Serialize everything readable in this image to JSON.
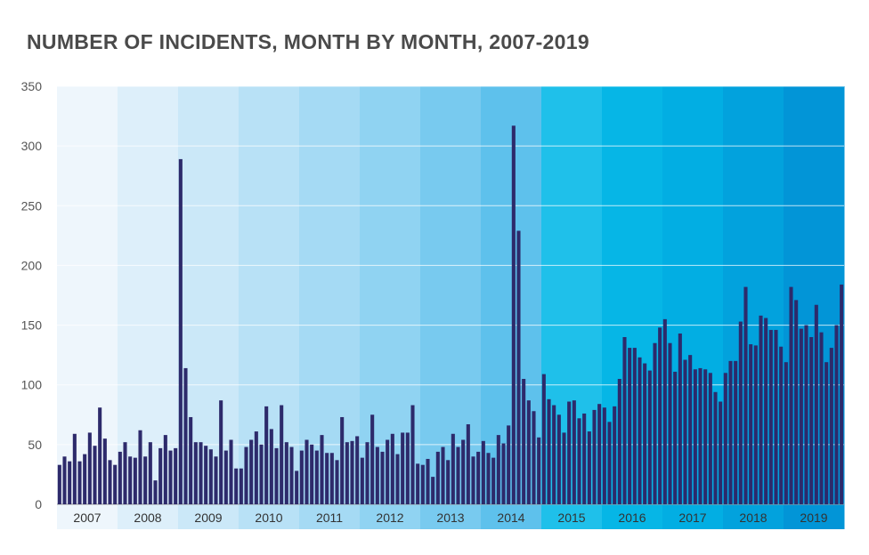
{
  "chart_data": {
    "type": "bar",
    "title": "NUMBER OF INCIDENTS, MONTH BY MONTH, 2007-2019",
    "xlabel": "",
    "ylabel": "",
    "ylim": [
      0,
      350
    ],
    "y_ticks": [
      0,
      50,
      100,
      150,
      200,
      250,
      300,
      350
    ],
    "grid": true,
    "bar_color": "#2d2a6b",
    "years": [
      "2007",
      "2008",
      "2009",
      "2010",
      "2011",
      "2012",
      "2013",
      "2014",
      "2015",
      "2016",
      "2017",
      "2018",
      "2019"
    ],
    "year_band_colors": [
      "#eef6fc",
      "#ddeffa",
      "#cbe8f8",
      "#b8e1f6",
      "#a5daf4",
      "#90d3f2",
      "#78caef",
      "#5ec1ec",
      "#1fc0ea",
      "#06b6e6",
      "#02aee3",
      "#02a2dd",
      "#0295d7"
    ],
    "values": [
      33,
      40,
      36,
      59,
      36,
      42,
      60,
      49,
      81,
      55,
      37,
      33,
      44,
      52,
      40,
      39,
      62,
      40,
      52,
      20,
      47,
      58,
      45,
      47,
      289,
      114,
      73,
      52,
      52,
      49,
      46,
      40,
      87,
      45,
      54,
      30,
      30,
      48,
      54,
      61,
      50,
      82,
      63,
      47,
      83,
      52,
      48,
      28,
      45,
      54,
      50,
      45,
      58,
      43,
      43,
      37,
      73,
      52,
      53,
      57,
      39,
      52,
      75,
      48,
      44,
      54,
      59,
      42,
      60,
      60,
      83,
      34,
      33,
      38,
      23,
      44,
      48,
      37,
      59,
      48,
      54,
      67,
      40,
      44,
      53,
      43,
      39,
      58,
      51,
      66,
      317,
      229,
      105,
      87,
      78,
      56,
      109,
      88,
      83,
      75,
      60,
      86,
      87,
      72,
      76,
      61,
      79,
      84,
      81,
      69,
      82,
      105,
      140,
      131,
      131,
      123,
      118,
      112,
      135,
      148,
      155,
      135,
      111,
      143,
      121,
      125,
      113,
      114,
      113,
      110,
      94,
      86,
      110,
      120,
      120,
      153,
      182,
      134,
      133,
      158,
      156,
      146,
      146,
      132,
      119,
      182,
      171,
      147,
      150,
      140,
      167,
      144,
      119,
      131,
      150,
      184
    ]
  }
}
